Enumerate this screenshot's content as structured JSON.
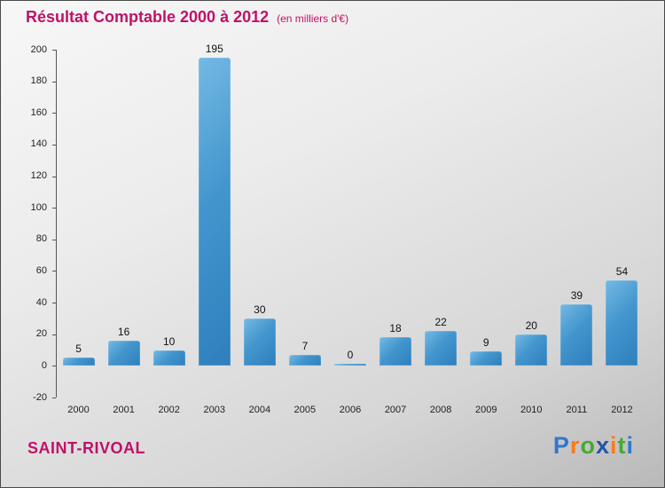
{
  "chart_data": {
    "type": "bar",
    "title": "Résultat Comptable 2000 à 2012",
    "subtitle": "(en milliers d'€)",
    "categories": [
      "2000",
      "2001",
      "2002",
      "2003",
      "2004",
      "2005",
      "2006",
      "2007",
      "2008",
      "2009",
      "2010",
      "2011",
      "2012"
    ],
    "values": [
      5,
      16,
      10,
      195,
      30,
      7,
      0,
      18,
      22,
      9,
      20,
      39,
      54
    ],
    "xlabel": "",
    "ylabel": "",
    "ylim": [
      -20,
      200
    ],
    "ytick_step": 20,
    "grid": false,
    "legend": false,
    "bar_color": "#3d8fc7"
  },
  "footer": {
    "entity": "SAINT-RIVOAL",
    "logo_letters": [
      {
        "char": "P",
        "color": "#3377cc"
      },
      {
        "char": "r",
        "color": "#ff7a1a"
      },
      {
        "char": "o",
        "color": "#44aa33"
      },
      {
        "char": "x",
        "color": "#2255aa"
      },
      {
        "char": "i",
        "color": "#ff7a1a"
      },
      {
        "char": "t",
        "color": "#44aa33"
      },
      {
        "char": "i",
        "color": "#3377cc"
      }
    ]
  },
  "colors": {
    "title": "#c01168",
    "entity": "#c01168",
    "axis": "#555555",
    "tick_text": "#222222",
    "value_text": "#111111"
  }
}
